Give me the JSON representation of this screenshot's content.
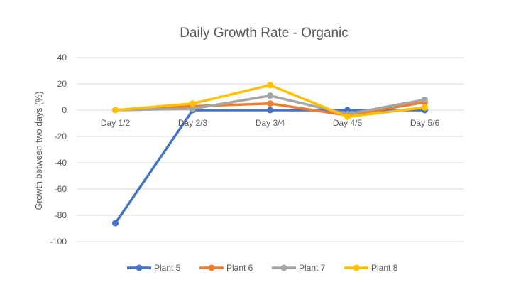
{
  "chart_data": {
    "type": "line",
    "title": "Daily Growth Rate - Organic",
    "xlabel": "",
    "ylabel": "Growth between two days (%)",
    "categories": [
      "Day 1/2",
      "Day 2/3",
      "Day 3/4",
      "Day 4/5",
      "Day 5/6"
    ],
    "ylim": [
      -100,
      40
    ],
    "yticks": [
      40,
      20,
      0,
      -20,
      -40,
      -60,
      -80,
      -100
    ],
    "grid": true,
    "legend_position": "bottom",
    "series": [
      {
        "name": "Plant 5",
        "color": "#4472C4",
        "values": [
          -86,
          0,
          0,
          0,
          0
        ]
      },
      {
        "name": "Plant 6",
        "color": "#ED7D31",
        "values": [
          0,
          3,
          5,
          -4,
          6
        ]
      },
      {
        "name": "Plant 7",
        "color": "#A5A5A5",
        "values": [
          0,
          1,
          11,
          -3,
          8
        ]
      },
      {
        "name": "Plant 8",
        "color": "#FFC000",
        "values": [
          0,
          5,
          19,
          -5,
          2
        ]
      }
    ]
  }
}
